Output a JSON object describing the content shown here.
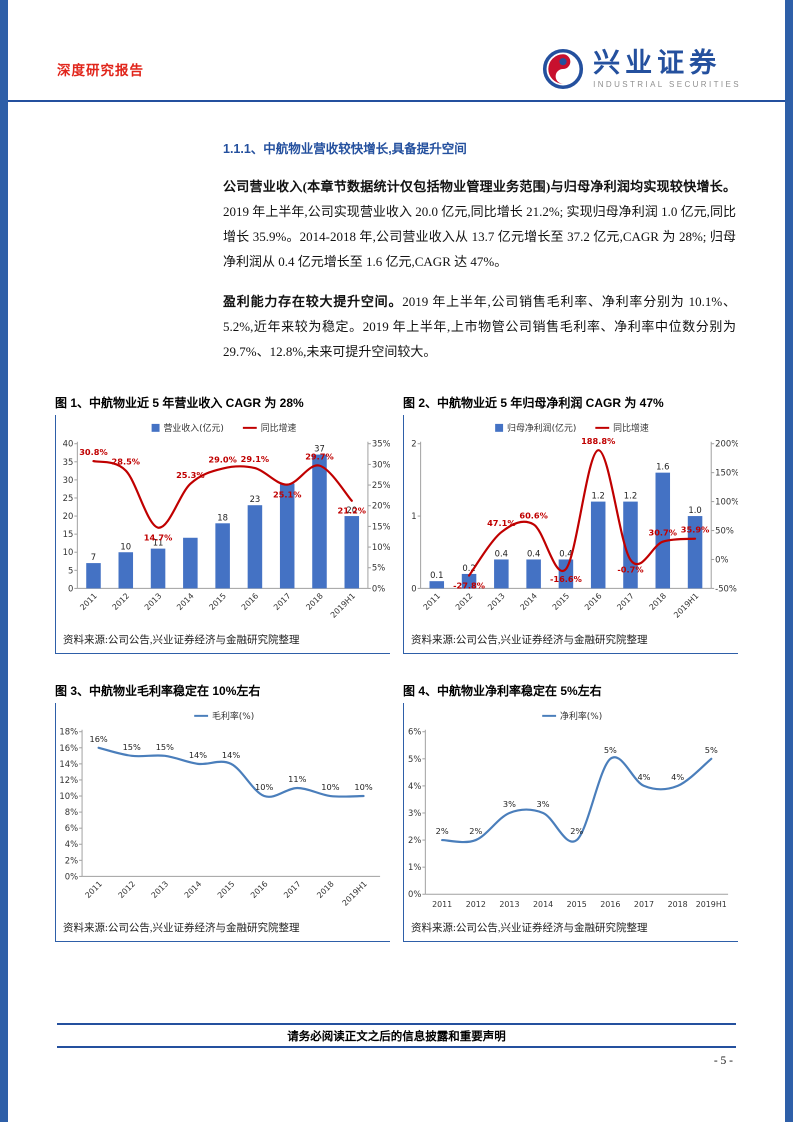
{
  "page": {
    "header": {
      "report_type": "深度研究报告",
      "brand": "兴业证券",
      "brand_en": "INDUSTRIAL SECURITIES",
      "logo_icon": "industrial-securities-emblem"
    },
    "section": {
      "heading": "1.1.1、中航物业营收较快增长,具备提升空间",
      "para1_bold": "公司营业收入(本章节数据统计仅包括物业管理业务范围)与归母净利润均实现较快增长。",
      "para1_rest": "2019 年上半年,公司实现营业收入 20.0 亿元,同比增长 21.2%; 实现归母净利润 1.0 亿元,同比增长 35.9%。2014-2018 年,公司营业收入从 13.7 亿元增长至 37.2 亿元,CAGR 为 28%; 归母净利润从 0.4 亿元增长至 1.6 亿元,CAGR 达 47%。",
      "para2_bold": "盈利能力存在较大提升空间。",
      "para2_rest": "2019 年上半年,公司销售毛利率、净利率分别为 10.1%、5.2%,近年来较为稳定。2019 年上半年,上市物管公司销售毛利率、净利率中位数分别为 29.7%、12.8%,未来可提升空间较大。"
    },
    "footer": {
      "disclaimer": "请务必阅读正文之后的信息披露和重要声明",
      "page_number": "- 5 -"
    }
  },
  "colors": {
    "accent_blue": "#24509e",
    "bar_blue": "#4472c4",
    "line_red": "#c00000",
    "line_blue": "#4a7ebb",
    "header_red": "#e1251b"
  },
  "chart_data": [
    {
      "type": "bar+line",
      "title": "图 1、中航物业近 5 年营业收入 CAGR 为 28%",
      "source": "资料来源:公司公告,兴业证券经济与金融研究院整理",
      "categories": [
        "2011",
        "2012",
        "2013",
        "2014",
        "2015",
        "2016",
        "2017",
        "2018",
        "2019H1"
      ],
      "series": [
        {
          "name": "营业收入(亿元)",
          "type": "bar",
          "axis": "left",
          "values": [
            7,
            10,
            11,
            14,
            18,
            23,
            29,
            37,
            20
          ],
          "labels": [
            "7",
            "10",
            "11",
            "",
            "18",
            "23",
            "",
            "37",
            "20"
          ]
        },
        {
          "name": "同比增速",
          "type": "line",
          "axis": "right",
          "values": [
            30.8,
            28.5,
            14.7,
            25.3,
            29.0,
            29.1,
            25.1,
            29.7,
            21.2
          ],
          "labels": [
            "30.8%",
            "28.5%",
            "14.7%",
            "25.3%",
            "29.0%",
            "29.1%",
            "25.1%",
            "29.7%",
            "21.2%"
          ]
        }
      ],
      "left_axis": {
        "min": 0,
        "max": 40,
        "step": 5,
        "format": "num"
      },
      "right_axis": {
        "min": 0,
        "max": 35,
        "step": 5,
        "format": "pct"
      },
      "x_rotated": true,
      "legend_position": "top",
      "grid": false
    },
    {
      "type": "bar+line",
      "title": "图 2、中航物业近 5 年归母净利润 CAGR 为 47%",
      "source": "资料来源:公司公告,兴业证券经济与金融研究院整理",
      "categories": [
        "2011",
        "2012",
        "2013",
        "2014",
        "2015",
        "2016",
        "2017",
        "2018",
        "2019H1"
      ],
      "series": [
        {
          "name": "归母净利润(亿元)",
          "type": "bar",
          "axis": "left",
          "values": [
            0.1,
            0.2,
            0.4,
            0.4,
            0.4,
            1.2,
            1.2,
            1.6,
            1.0
          ],
          "labels": [
            "0.1",
            "0.2",
            "0.4",
            "0.4",
            "0.4",
            "1.2",
            "1.2",
            "1.6",
            "1.0"
          ]
        },
        {
          "name": "同比增速",
          "type": "line",
          "axis": "right",
          "values": [
            null,
            -27.8,
            47.1,
            60.6,
            -16.6,
            188.8,
            -0.7,
            30.7,
            35.9
          ],
          "labels": [
            "",
            "-27.8%",
            "47.1%",
            "60.6%",
            "-16.6%",
            "188.8%",
            "-0.7%",
            "30.7%",
            "35.9%"
          ]
        }
      ],
      "left_axis": {
        "min": 0,
        "max": 2,
        "step": 1,
        "format": "num"
      },
      "right_axis": {
        "min": -50,
        "max": 200,
        "step": 50,
        "format": "pct"
      },
      "x_rotated": true,
      "legend_position": "top",
      "grid": false
    },
    {
      "type": "line",
      "title": "图 3、中航物业毛利率稳定在 10%左右",
      "source": "资料来源:公司公告,兴业证券经济与金融研究院整理",
      "categories": [
        "2011",
        "2012",
        "2013",
        "2014",
        "2015",
        "2016",
        "2017",
        "2018",
        "2019H1"
      ],
      "series": [
        {
          "name": "毛利率(%)",
          "type": "line",
          "axis": "left",
          "values": [
            16,
            15,
            15,
            14,
            14,
            10,
            11,
            10,
            10
          ],
          "labels": [
            "16%",
            "15%",
            "15%",
            "14%",
            "14%",
            "10%",
            "11%",
            "10%",
            "10%"
          ]
        }
      ],
      "left_axis": {
        "min": 0,
        "max": 18,
        "step": 2,
        "format": "pct"
      },
      "x_rotated": true,
      "legend_position": "top",
      "grid": false
    },
    {
      "type": "line",
      "title": "图 4、中航物业净利率稳定在 5%左右",
      "source": "资料来源:公司公告,兴业证券经济与金融研究院整理",
      "categories": [
        "2011",
        "2012",
        "2013",
        "2014",
        "2015",
        "2016",
        "2017",
        "2018",
        "2019H1"
      ],
      "series": [
        {
          "name": "净利率(%)",
          "type": "line",
          "axis": "left",
          "values": [
            2,
            2,
            3,
            3,
            2,
            5,
            4,
            4,
            5
          ],
          "labels": [
            "2%",
            "2%",
            "3%",
            "3%",
            "2%",
            "5%",
            "4%",
            "4%",
            "5%"
          ]
        }
      ],
      "left_axis": {
        "min": 0,
        "max": 6,
        "step": 1,
        "format": "pct"
      },
      "x_rotated": false,
      "legend_position": "top",
      "grid": false
    }
  ]
}
